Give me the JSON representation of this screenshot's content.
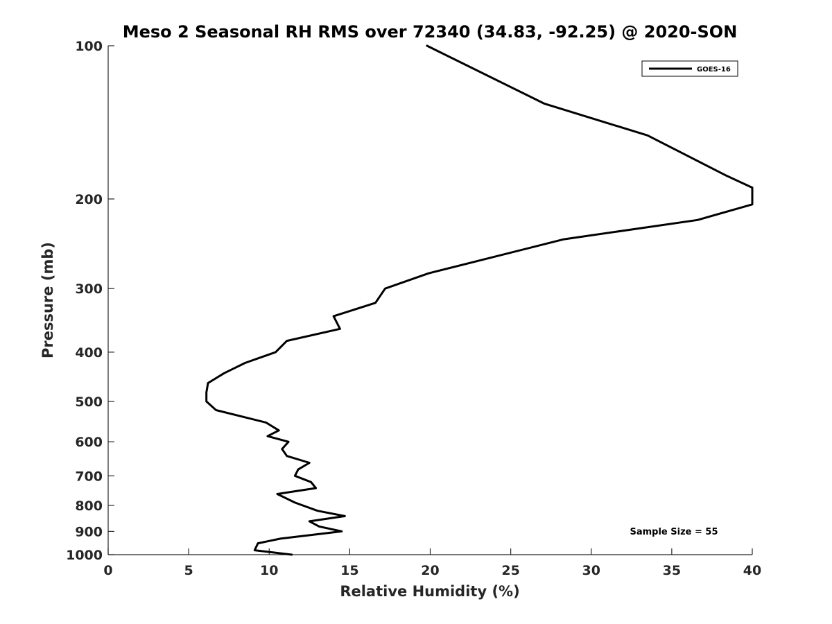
{
  "chart_data": {
    "type": "line",
    "title": "Meso 2 Seasonal RH RMS over 72340 (34.83, -92.25) @ 2020-SON",
    "xlabel": "Relative Humidity (%)",
    "ylabel": "Pressure (mb)",
    "xlim": [
      0,
      40
    ],
    "ylim": [
      100,
      1000
    ],
    "y_scale": "log",
    "y_reversed": true,
    "x_ticks": [
      "0",
      "5",
      "10",
      "15",
      "20",
      "25",
      "30",
      "35",
      "40"
    ],
    "y_ticks": [
      "100",
      "200",
      "300",
      "400",
      "500",
      "600",
      "700",
      "800",
      "900",
      "1000"
    ],
    "grid": false,
    "legend_position": "top-right",
    "line_color": "#000000",
    "series": [
      {
        "name": "GOES-16",
        "x": [
          19.8,
          27.1,
          33.5,
          38.4,
          40.0,
          40.0,
          36.6,
          28.3,
          19.9,
          17.2,
          16.6,
          14.0,
          14.4,
          11.1,
          10.4,
          8.5,
          7.2,
          6.2,
          6.1,
          6.1,
          6.7,
          9.8,
          10.6,
          9.9,
          11.2,
          10.8,
          11.1,
          12.5,
          11.8,
          11.6,
          12.6,
          12.9,
          10.5,
          11.6,
          13.0,
          14.7,
          12.5,
          13.1,
          14.5,
          10.7,
          9.3,
          9.1,
          11.4
        ],
        "y": [
          100,
          130,
          150,
          180,
          190,
          205,
          220,
          240,
          280,
          300,
          320,
          340,
          360,
          380,
          400,
          420,
          440,
          460,
          480,
          500,
          520,
          550,
          570,
          585,
          600,
          620,
          640,
          660,
          680,
          700,
          720,
          740,
          760,
          790,
          820,
          840,
          860,
          880,
          900,
          930,
          950,
          980,
          1000
        ]
      }
    ],
    "annotation": "Sample Size = 55"
  }
}
